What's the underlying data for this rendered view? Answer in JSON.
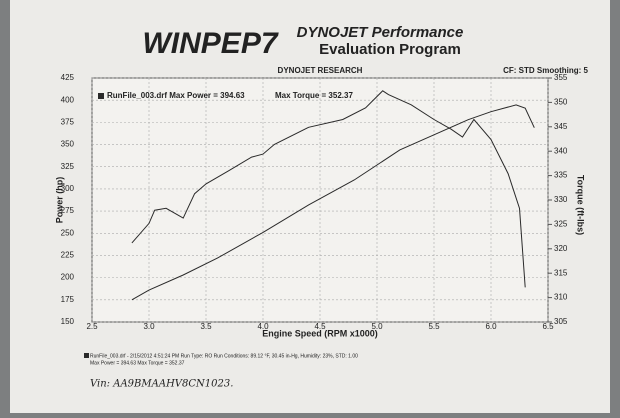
{
  "header": {
    "logo": "WINPEP7",
    "title_line1": "DYNOJET Performance",
    "title_line2": "Evaluation Program",
    "company": "DYNOJET RESEARCH",
    "settings": "CF: STD  Smoothing: 5"
  },
  "chart_data": {
    "type": "line",
    "xlabel": "Engine Speed (RPM x1000)",
    "ylabel": "Power (hp)",
    "y2label": "Torque (ft-lbs)",
    "xlim": [
      2.5,
      6.5
    ],
    "xticks": [
      2.5,
      {
        "value": 3,
        "label": "3.0"
      },
      3.5,
      {
        "value": 4,
        "label": "4.0"
      },
      4.5,
      {
        "value": 5,
        "label": "5.0"
      },
      5.5,
      {
        "value": 6,
        "label": "6.0"
      },
      6.5
    ],
    "ylim": [
      150,
      425
    ],
    "yticks": [
      150,
      175,
      200,
      225,
      250,
      275,
      300,
      325,
      350,
      375,
      400,
      425
    ],
    "y2lim": [
      305,
      355
    ],
    "y2ticks": [
      305,
      310,
      315,
      320,
      325,
      330,
      335,
      340,
      345,
      350,
      355
    ],
    "grid": true,
    "series": [
      {
        "name": "RunFile_003.drf Max Power = 394.63",
        "color": "#2a2a2a",
        "x": [
          2.85,
          3.0,
          3.3,
          3.6,
          4.0,
          4.4,
          4.8,
          5.0,
          5.2,
          5.5,
          5.8,
          6.0,
          6.22,
          6.3,
          6.38
        ],
        "values": [
          175,
          186,
          203,
          222,
          251,
          282,
          310,
          327,
          344,
          361,
          378,
          387,
          394.63,
          391,
          369
        ]
      },
      {
        "name": "Max Torque = 352.37",
        "color": "#2a2a2a",
        "axis": "y2",
        "x": [
          2.85,
          3.0,
          3.05,
          3.15,
          3.3,
          3.4,
          3.5,
          3.7,
          3.9,
          4.0,
          4.1,
          4.4,
          4.7,
          4.9,
          5.05,
          5.1,
          5.3,
          5.5,
          5.65,
          5.75,
          5.85,
          6.0,
          6.15,
          6.25,
          6.3
        ],
        "values": [
          321.2,
          325.2,
          327.9,
          328.3,
          326.3,
          331.3,
          333.3,
          336,
          338.8,
          339.4,
          341.4,
          344.9,
          346.5,
          348.9,
          352.37,
          351.6,
          349.5,
          346.5,
          344.5,
          342.9,
          346.5,
          342.4,
          335.4,
          328.3,
          312.1
        ]
      }
    ]
  },
  "footer": {
    "line1": "RunFile_003.drf - 2/15/2012 4:51:24 PM  Run Type: RO  Run Conditions: 89.12 °F, 30.45 in-Hg, Humidity: 23%, STD: 1.00",
    "line2": "Max Power = 394.63  Max Torque = 352.37",
    "vin": "Vin: AA9BMAAHV8CN1023."
  }
}
